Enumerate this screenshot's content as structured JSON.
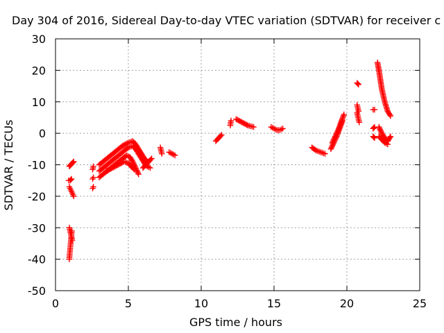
{
  "chart_data": {
    "type": "scatter",
    "title": "Day 304 of 2016, Sidereal Day-to-day VTEC variation (SDTVAR) for receiver c",
    "xlabel": "GPS time / hours",
    "ylabel": "SDTVAR / TECUs",
    "xlim": [
      0,
      25
    ],
    "ylim": [
      -50,
      30
    ],
    "x_ticks": [
      "0",
      "5",
      "10",
      "15",
      "20",
      "25"
    ],
    "y_ticks": [
      "30",
      "20",
      "10",
      "0",
      "-10",
      "-20",
      "-30",
      "-40",
      "-50"
    ],
    "grid": true,
    "legend": "none",
    "marker": "plus",
    "color": "#ff0000",
    "segments": [
      {
        "x": [
          0.95,
          0.97,
          1.0,
          1.03,
          1.06,
          1.09,
          1.12
        ],
        "y": [
          -40.0,
          -38.5,
          -37.0,
          -35.5,
          -34.0,
          -32.5,
          -31.0
        ]
      },
      {
        "x": [
          0.95,
          1.0,
          1.05,
          1.1,
          1.15
        ],
        "y": [
          -30.0,
          -31.0,
          -32.0,
          -33.0,
          -34.0
        ]
      },
      {
        "x": [
          0.95,
          1.05,
          1.15,
          1.25
        ],
        "y": [
          -17.0,
          -18.0,
          -19.0,
          -20.0
        ]
      },
      {
        "x": [
          0.9,
          1.0,
          1.1
        ],
        "y": [
          -15.0,
          -15.0,
          -14.5
        ]
      },
      {
        "x": [
          0.95,
          1.05,
          1.15,
          1.25
        ],
        "y": [
          -10.5,
          -10.0,
          -9.5,
          -9.0
        ]
      },
      {
        "x": [
          2.55,
          2.6
        ],
        "y": [
          -17.5,
          -17.0
        ]
      },
      {
        "x": [
          2.55,
          2.6
        ],
        "y": [
          -14.5,
          -14.0
        ]
      },
      {
        "x": [
          2.55,
          2.6
        ],
        "y": [
          -11.5,
          -10.5
        ]
      },
      {
        "x": [
          3.0,
          3.4,
          3.8,
          4.2,
          4.6,
          5.0,
          5.3,
          5.5,
          5.7,
          5.9,
          6.1,
          6.3
        ],
        "y": [
          -10.0,
          -8.5,
          -7.0,
          -5.5,
          -4.0,
          -3.0,
          -2.5,
          -3.5,
          -5.0,
          -6.5,
          -8.0,
          -9.0
        ]
      },
      {
        "x": [
          3.0,
          3.4,
          3.8,
          4.2,
          4.6,
          5.0,
          5.3,
          5.5,
          5.7,
          5.9,
          6.1,
          6.3,
          6.5
        ],
        "y": [
          -12.0,
          -10.5,
          -9.0,
          -7.5,
          -6.0,
          -4.5,
          -4.0,
          -5.0,
          -6.5,
          -8.0,
          -9.5,
          -10.5,
          -11.0
        ]
      },
      {
        "x": [
          3.0,
          3.4,
          3.8,
          4.2,
          4.6,
          4.9,
          5.1,
          5.3,
          5.5,
          5.7
        ],
        "y": [
          -14.0,
          -12.5,
          -11.0,
          -9.5,
          -8.0,
          -7.0,
          -7.5,
          -9.0,
          -11.0,
          -13.0
        ]
      },
      {
        "x": [
          3.5,
          3.9,
          4.3,
          4.7,
          5.0,
          5.2,
          5.4
        ],
        "y": [
          -12.0,
          -11.0,
          -10.0,
          -9.0,
          -9.5,
          -10.5,
          -11.5
        ]
      },
      {
        "x": [
          6.0,
          6.2,
          6.4,
          6.6
        ],
        "y": [
          -11.0,
          -10.0,
          -9.0,
          -8.0
        ]
      },
      {
        "x": [
          7.2,
          7.25,
          7.3
        ],
        "y": [
          -4.5,
          -5.5,
          -6.5
        ]
      },
      {
        "x": [
          7.8,
          8.0,
          8.2
        ],
        "y": [
          -6.0,
          -6.5,
          -7.0
        ]
      },
      {
        "x": [
          11.0,
          11.2,
          11.4
        ],
        "y": [
          -2.5,
          -1.5,
          -0.5
        ]
      },
      {
        "x": [
          12.0,
          12.05
        ],
        "y": [
          2.5,
          4.0
        ]
      },
      {
        "x": [
          12.4,
          12.8,
          13.2,
          13.6
        ],
        "y": [
          4.5,
          3.5,
          2.5,
          2.0
        ]
      },
      {
        "x": [
          14.8,
          15.0,
          15.2,
          15.4,
          15.6
        ],
        "y": [
          2.0,
          1.5,
          1.0,
          1.0,
          1.5
        ]
      },
      {
        "x": [
          17.6,
          17.9,
          18.2,
          18.5
        ],
        "y": [
          -4.5,
          -5.5,
          -6.0,
          -6.5
        ]
      },
      {
        "x": [
          18.9,
          19.1,
          19.3,
          19.5,
          19.7
        ],
        "y": [
          -5.0,
          -3.0,
          -1.0,
          1.5,
          4.0
        ]
      },
      {
        "x": [
          19.0,
          19.2,
          19.4,
          19.6,
          19.8
        ],
        "y": [
          -3.0,
          -1.0,
          1.0,
          3.5,
          6.0
        ]
      },
      {
        "x": [
          20.7,
          20.8
        ],
        "y": [
          16.0,
          15.5
        ]
      },
      {
        "x": [
          20.7,
          20.75,
          20.8
        ],
        "y": [
          9.0,
          8.0,
          7.0
        ]
      },
      {
        "x": [
          20.7,
          20.75,
          20.8,
          20.85
        ],
        "y": [
          6.5,
          5.5,
          4.5,
          3.5
        ]
      },
      {
        "x": [
          21.8,
          21.9
        ],
        "y": [
          7.5,
          7.5
        ]
      },
      {
        "x": [
          21.8,
          21.9
        ],
        "y": [
          1.5,
          2.0
        ]
      },
      {
        "x": [
          21.8,
          21.9
        ],
        "y": [
          -1.0,
          -1.5
        ]
      },
      {
        "x": [
          22.1,
          22.2,
          22.3,
          22.4,
          22.6,
          22.8,
          23.0
        ],
        "y": [
          22.5,
          20.0,
          17.0,
          14.0,
          10.0,
          7.0,
          5.5
        ]
      },
      {
        "x": [
          22.2,
          22.4,
          22.6,
          22.8,
          23.0
        ],
        "y": [
          2.0,
          0.0,
          -1.5,
          -2.5,
          -1.0
        ]
      },
      {
        "x": [
          22.2,
          22.4,
          22.6,
          22.8
        ],
        "y": [
          -1.0,
          -2.0,
          -3.0,
          -3.5
        ]
      }
    ]
  }
}
